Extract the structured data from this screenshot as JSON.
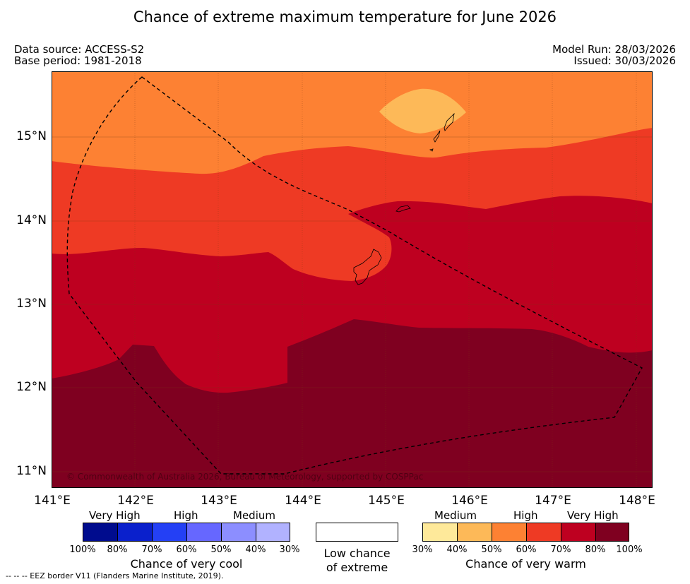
{
  "title": "Chance of extreme maximum temperature for June 2026",
  "header": {
    "data_source": "Data source: ACCESS-S2",
    "base_period": "Base period: 1981-2018",
    "model_run": "Model Run: 28/03/2026",
    "issued": "Issued: 30/03/2026"
  },
  "map": {
    "lat_labels": [
      "15°N",
      "14°N",
      "13°N",
      "12°N",
      "11°N"
    ],
    "lon_labels": [
      "141°E",
      "142°E",
      "143°E",
      "144°E",
      "145°E",
      "146°E",
      "147°E",
      "148°E"
    ],
    "copyright": "© Commonwealth of Australia 2026, Bureau of Meteorology, supported by COSPPac",
    "colors": {
      "medium": "#fdb958",
      "high_low": "#fd8133",
      "high_mid": "#ee3a24",
      "very_high_low": "#be0020",
      "very_high_high": "#7f0020"
    }
  },
  "legend": {
    "cool": {
      "categories": [
        "Very High",
        "High",
        "Medium"
      ],
      "ticks": [
        "100%",
        "80%",
        "70%",
        "60%",
        "50%",
        "40%",
        "30%"
      ],
      "caption": "Chance of very cool",
      "colors": [
        "#000c8e",
        "#0a20cc",
        "#2440f5",
        "#6667ff",
        "#8c8eff",
        "#b1b2ff"
      ]
    },
    "low": {
      "line1": "Low chance",
      "line2": "of extreme"
    },
    "warm": {
      "categories": [
        "Medium",
        "High",
        "Very High"
      ],
      "ticks": [
        "30%",
        "40%",
        "50%",
        "60%",
        "70%",
        "80%",
        "100%"
      ],
      "caption": "Chance of very warm",
      "colors": [
        "#fee99a",
        "#fdb958",
        "#fd8133",
        "#ee3a24",
        "#be0020",
        "#7f0020"
      ]
    }
  },
  "footer": "--  --  -- EEZ border V11 (Flanders Marine Institute, 2019)."
}
